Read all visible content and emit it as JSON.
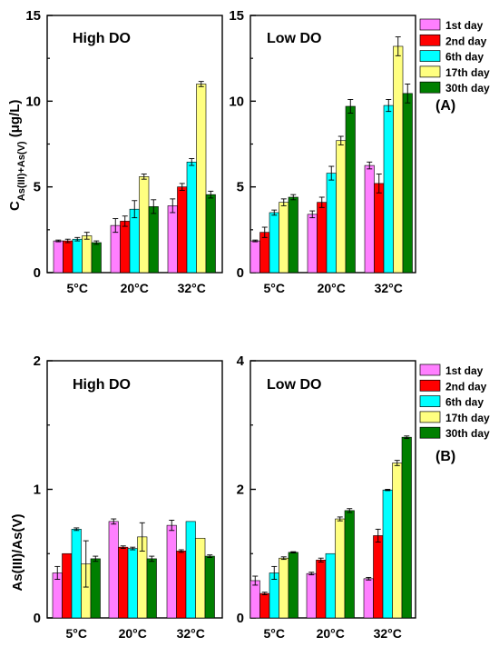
{
  "chart_data": [
    {
      "type": "bar",
      "title": "High DO",
      "categories": [
        "5°C",
        "20°C",
        "32°C"
      ],
      "ylabel": "C_As(III)+As(V) (μg/L)",
      "ylim": [
        0,
        15
      ],
      "yticks": [
        "0",
        "5",
        "10",
        "15"
      ],
      "series": [
        {
          "name": "1st day",
          "color": "#ff7fff",
          "values": [
            1.85,
            2.75,
            3.9
          ],
          "errors": [
            0.05,
            0.4,
            0.4
          ]
        },
        {
          "name": "2nd day",
          "color": "#ff0000",
          "values": [
            1.85,
            3.0,
            5.0
          ],
          "errors": [
            0.1,
            0.3,
            0.2
          ]
        },
        {
          "name": "6th day",
          "color": "#00ffff",
          "values": [
            1.95,
            3.7,
            6.45
          ],
          "errors": [
            0.1,
            0.5,
            0.2
          ]
        },
        {
          "name": "17th day",
          "color": "#ffff80",
          "values": [
            2.15,
            5.6,
            11.0
          ],
          "errors": [
            0.2,
            0.15,
            0.15
          ]
        },
        {
          "name": "30th day",
          "color": "#007f00",
          "values": [
            1.75,
            3.85,
            4.55
          ],
          "errors": [
            0.1,
            0.4,
            0.2
          ]
        }
      ]
    },
    {
      "type": "bar",
      "title": "Low DO",
      "categories": [
        "5°C",
        "20°C",
        "32°C"
      ],
      "ylim": [
        0,
        15
      ],
      "yticks": [
        "0",
        "5",
        "10",
        "15"
      ],
      "series": [
        {
          "name": "1st day",
          "color": "#ff7fff",
          "values": [
            1.85,
            3.4,
            6.25
          ],
          "errors": [
            0.05,
            0.2,
            0.2
          ]
        },
        {
          "name": "2nd day",
          "color": "#ff0000",
          "values": [
            2.35,
            4.1,
            5.2
          ],
          "errors": [
            0.3,
            0.3,
            0.55
          ]
        },
        {
          "name": "6th day",
          "color": "#00ffff",
          "values": [
            3.5,
            5.8,
            9.75
          ],
          "errors": [
            0.15,
            0.4,
            0.35
          ]
        },
        {
          "name": "17th day",
          "color": "#ffff80",
          "values": [
            4.1,
            7.7,
            13.2
          ],
          "errors": [
            0.2,
            0.25,
            0.55
          ]
        },
        {
          "name": "30th day",
          "color": "#007f00",
          "values": [
            4.4,
            9.7,
            10.45
          ],
          "errors": [
            0.15,
            0.4,
            0.55
          ]
        }
      ]
    },
    {
      "type": "bar",
      "title": "High DO",
      "categories": [
        "5°C",
        "20°C",
        "32°C"
      ],
      "ylabel": "As(III)/As(V)",
      "ylim": [
        0,
        2
      ],
      "yticks": [
        "0",
        "1",
        "2"
      ],
      "series": [
        {
          "name": "1st day",
          "color": "#ff7fff",
          "values": [
            0.35,
            0.75,
            0.72
          ],
          "errors": [
            0.05,
            0.02,
            0.04
          ]
        },
        {
          "name": "2nd day",
          "color": "#ff0000",
          "values": [
            0.5,
            0.55,
            0.52
          ],
          "errors": [
            0.0,
            0.01,
            0.01
          ]
        },
        {
          "name": "6th day",
          "color": "#00ffff",
          "values": [
            0.69,
            0.54,
            0.75
          ],
          "errors": [
            0.01,
            0.01,
            0.0
          ]
        },
        {
          "name": "17th day",
          "color": "#ffff80",
          "values": [
            0.42,
            0.63,
            0.62
          ],
          "errors": [
            0.18,
            0.11,
            0.0
          ]
        },
        {
          "name": "30th day",
          "color": "#007f00",
          "values": [
            0.46,
            0.46,
            0.48
          ],
          "errors": [
            0.02,
            0.02,
            0.01
          ]
        }
      ]
    },
    {
      "type": "bar",
      "title": "Low DO",
      "categories": [
        "5°C",
        "20°C",
        "32°C"
      ],
      "ylim": [
        0,
        4
      ],
      "yticks": [
        "0",
        "2",
        "4"
      ],
      "series": [
        {
          "name": "1st day",
          "color": "#ff7fff",
          "values": [
            0.58,
            0.69,
            0.61
          ],
          "errors": [
            0.07,
            0.02,
            0.02
          ]
        },
        {
          "name": "2nd day",
          "color": "#ff0000",
          "values": [
            0.38,
            0.9,
            1.28
          ],
          "errors": [
            0.02,
            0.03,
            0.1
          ]
        },
        {
          "name": "6th day",
          "color": "#00ffff",
          "values": [
            0.7,
            1.0,
            1.99
          ],
          "errors": [
            0.1,
            0.0,
            0.01
          ]
        },
        {
          "name": "17th day",
          "color": "#ffff80",
          "values": [
            0.93,
            1.54,
            2.41
          ],
          "errors": [
            0.02,
            0.03,
            0.04
          ]
        },
        {
          "name": "30th day",
          "color": "#007f00",
          "values": [
            1.02,
            1.67,
            2.81
          ],
          "errors": [
            0.01,
            0.03,
            0.02
          ]
        }
      ]
    }
  ],
  "legend_top": {
    "tag": "(A)"
  },
  "legend_bottom": {
    "tag": "(B)"
  }
}
